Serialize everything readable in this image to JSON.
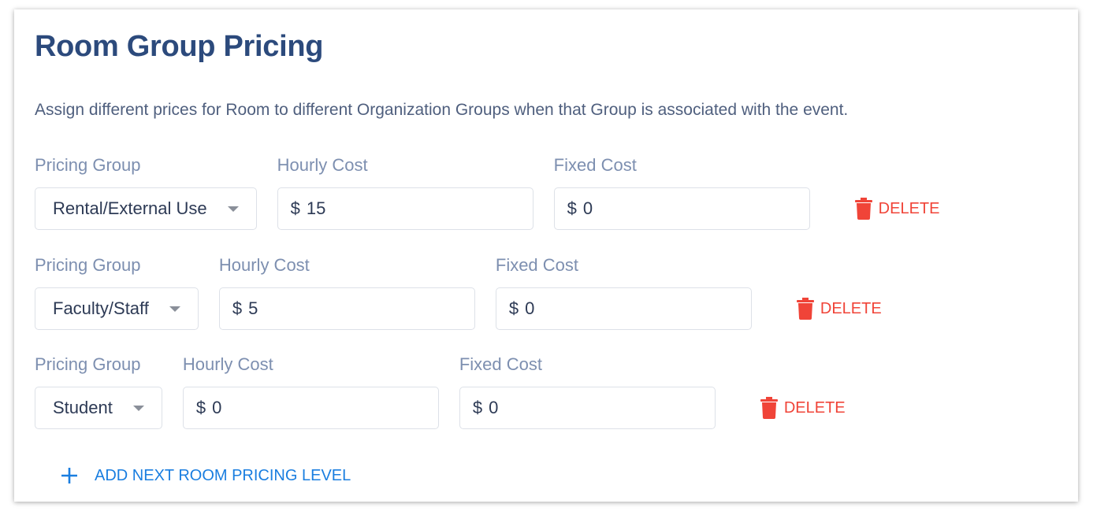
{
  "title": "Room Group Pricing",
  "description": "Assign different prices for Room to different Organization Groups when that Group is associated with the event.",
  "labels": {
    "group": "Pricing Group",
    "hourly": "Hourly Cost",
    "fixed": "Fixed Cost",
    "currency": "$",
    "delete": "DELETE"
  },
  "rows": [
    {
      "group": "Rental/External Use",
      "hourly": "15",
      "fixed": "0"
    },
    {
      "group": "Faculty/Staff",
      "hourly": "5",
      "fixed": "0"
    },
    {
      "group": "Student",
      "hourly": "0",
      "fixed": "0"
    }
  ],
  "add_label": "ADD NEXT ROOM PRICING LEVEL",
  "colors": {
    "title": "#2c4a7c",
    "delete": "#f04438",
    "link": "#1a7ee0"
  },
  "icons": {
    "delete": "trash-icon",
    "add": "plus-icon",
    "select": "caret-down-icon"
  }
}
